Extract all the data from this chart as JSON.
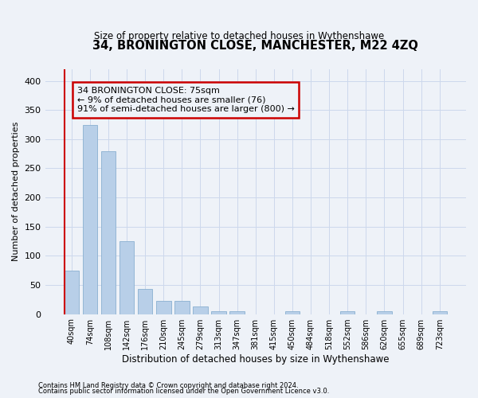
{
  "title": "34, BRONINGTON CLOSE, MANCHESTER, M22 4ZQ",
  "subtitle": "Size of property relative to detached houses in Wythenshawe",
  "xlabel": "Distribution of detached houses by size in Wythenshawe",
  "ylabel": "Number of detached properties",
  "categories": [
    "40sqm",
    "74sqm",
    "108sqm",
    "142sqm",
    "176sqm",
    "210sqm",
    "245sqm",
    "279sqm",
    "313sqm",
    "347sqm",
    "381sqm",
    "415sqm",
    "450sqm",
    "484sqm",
    "518sqm",
    "552sqm",
    "586sqm",
    "620sqm",
    "655sqm",
    "689sqm",
    "723sqm"
  ],
  "values": [
    75,
    325,
    280,
    125,
    43,
    23,
    23,
    13,
    5,
    5,
    0,
    0,
    5,
    0,
    0,
    5,
    0,
    5,
    0,
    0,
    5
  ],
  "bar_color": "#b8cfe8",
  "bar_edge_color": "#8ab0d0",
  "annotation_box_text": "34 BRONINGTON CLOSE: 75sqm\n← 9% of detached houses are smaller (76)\n91% of semi-detached houses are larger (800) →",
  "annotation_box_edgecolor": "#cc0000",
  "vline_color": "#cc0000",
  "bg_color": "#eef2f8",
  "grid_color": "#ccd8ec",
  "ylim": [
    0,
    420
  ],
  "yticks": [
    0,
    50,
    100,
    150,
    200,
    250,
    300,
    350,
    400
  ],
  "footer_line1": "Contains HM Land Registry data © Crown copyright and database right 2024.",
  "footer_line2": "Contains public sector information licensed under the Open Government Licence v3.0."
}
